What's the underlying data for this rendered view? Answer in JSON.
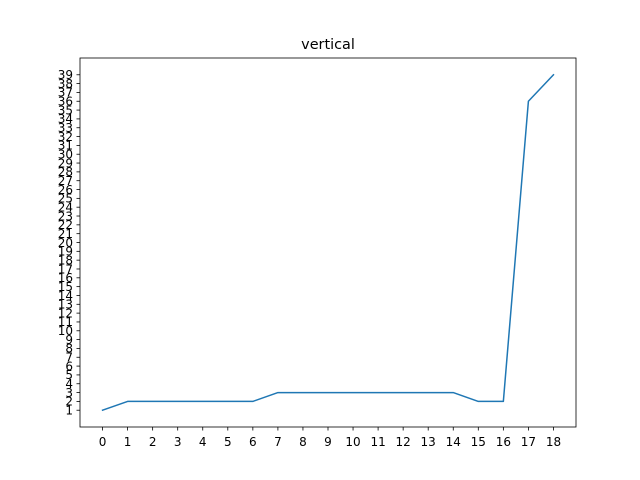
{
  "chart_data": {
    "type": "line",
    "title": "vertical",
    "xlabel": "",
    "ylabel": "",
    "x": [
      0,
      1,
      2,
      3,
      4,
      5,
      6,
      7,
      8,
      9,
      10,
      11,
      12,
      13,
      14,
      15,
      16,
      17,
      18
    ],
    "series": [
      {
        "color": "#1f77b4",
        "values": [
          1,
          2,
          2,
          2,
          2,
          2,
          2,
          3,
          3,
          3,
          3,
          3,
          3,
          3,
          3,
          2,
          2,
          36,
          39
        ]
      }
    ],
    "xticks": [
      0,
      1,
      2,
      3,
      4,
      5,
      6,
      7,
      8,
      9,
      10,
      11,
      12,
      13,
      14,
      15,
      16,
      17,
      18
    ],
    "yticks": [
      1,
      2,
      3,
      4,
      5,
      6,
      7,
      8,
      9,
      10,
      11,
      12,
      13,
      14,
      15,
      16,
      17,
      18,
      19,
      20,
      21,
      22,
      23,
      24,
      25,
      26,
      27,
      28,
      29,
      30,
      31,
      32,
      33,
      34,
      35,
      36,
      37,
      38,
      39
    ],
    "xlim": [
      -0.9,
      18.9
    ],
    "ylim": [
      -0.9,
      40.9
    ],
    "grid": false,
    "legend": "none"
  }
}
